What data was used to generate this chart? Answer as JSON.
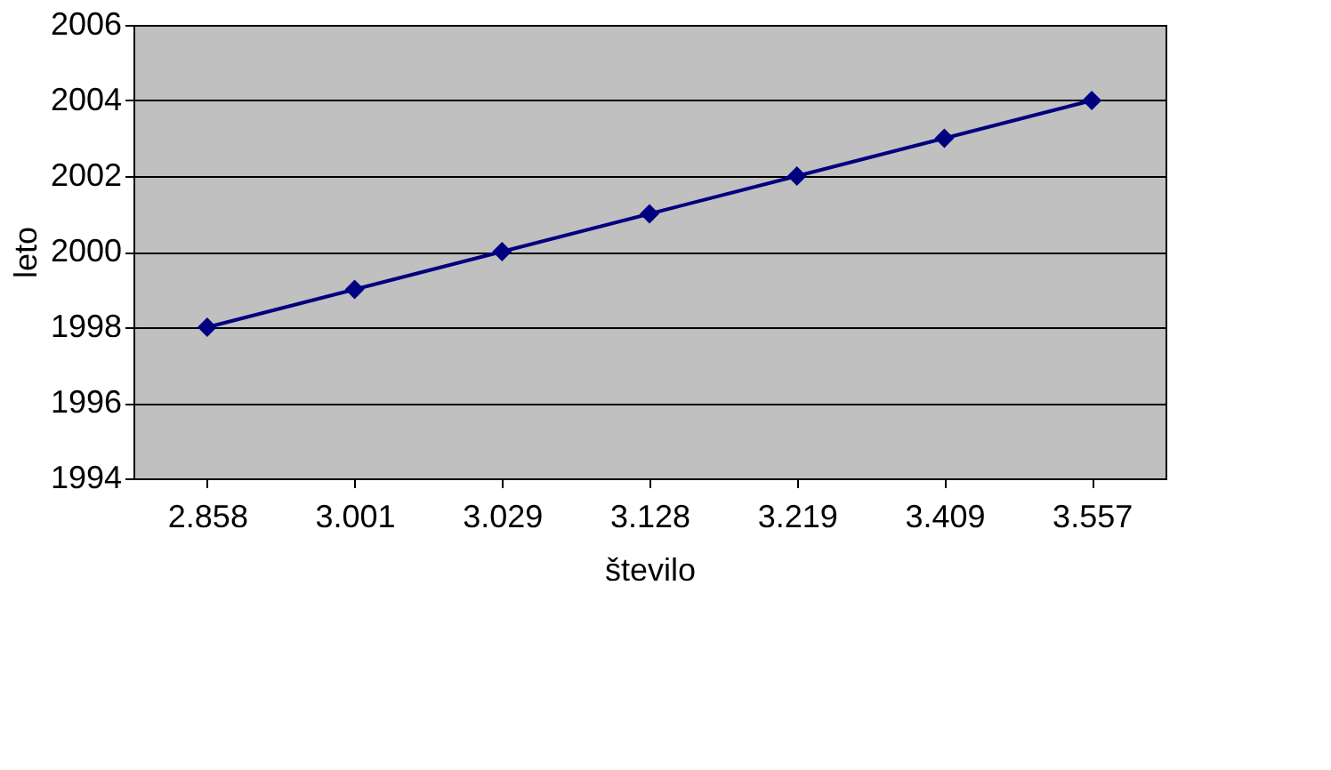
{
  "chart_data": {
    "type": "line",
    "xlabel": "število",
    "ylabel": "leto",
    "categories": [
      "2.858",
      "3.001",
      "3.029",
      "3.128",
      "3.219",
      "3.409",
      "3.557"
    ],
    "series": [
      {
        "color": "#000080",
        "values": [
          1998,
          1999,
          2000,
          2001,
          2002,
          2003,
          2004
        ]
      }
    ],
    "ylim": [
      1994,
      2006
    ],
    "yticks": [
      1994,
      1996,
      1998,
      2000,
      2002,
      2004,
      2006
    ],
    "grid": "y",
    "marker": "diamond",
    "line_style": "solid"
  }
}
